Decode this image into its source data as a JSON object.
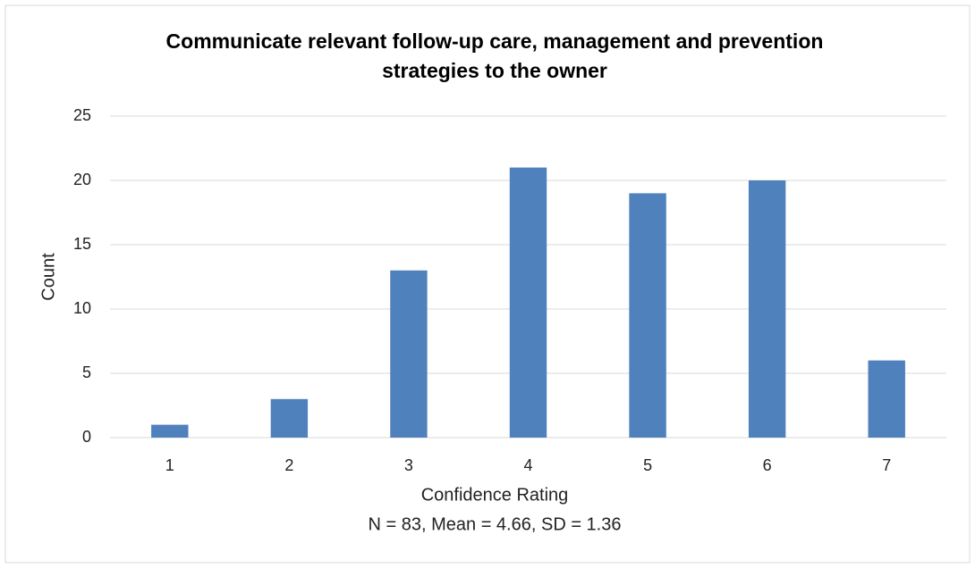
{
  "chart_data": {
    "type": "bar",
    "title": "Communicate relevant follow-up care, management and prevention strategies to the owner",
    "x_label": "Confidence Rating",
    "y_label": "Count",
    "annotation": "N = 83, Mean = 4.66, SD = 1.36",
    "categories": [
      "1",
      "2",
      "3",
      "4",
      "5",
      "6",
      "7"
    ],
    "values": [
      1,
      3,
      13,
      21,
      19,
      20,
      6
    ],
    "color": "#4f81bd",
    "ylim": [
      0,
      25
    ],
    "yticks": [
      0,
      5,
      10,
      15,
      20,
      25
    ],
    "grid": true
  }
}
